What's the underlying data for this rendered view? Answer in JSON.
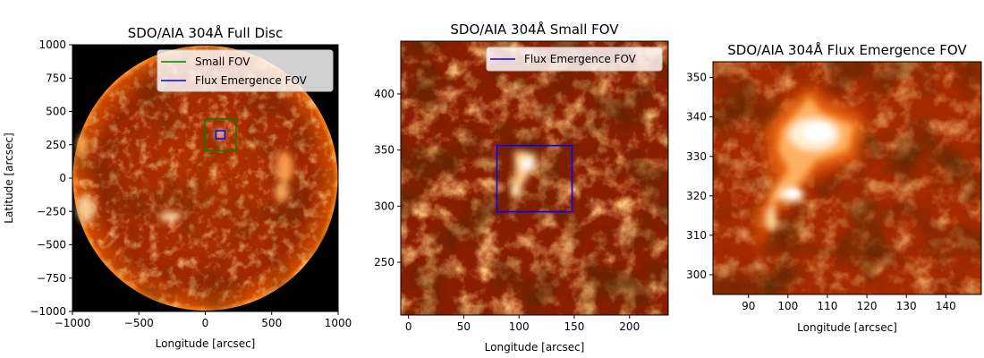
{
  "chart_data": [
    {
      "type": "heatmap",
      "title": "SDO/AIA 304Å Full Disc",
      "xlabel": "Longitude [arcsec]",
      "ylabel": "Latitude [arcsec]",
      "xlim": [
        -1000,
        1000
      ],
      "ylim": [
        -1000,
        1000
      ],
      "xticks": [
        -1000,
        -500,
        0,
        500,
        1000
      ],
      "xtick_labels": [
        "−1000",
        "−500",
        "0",
        "500",
        "1000"
      ],
      "yticks": [
        -1000,
        -750,
        -500,
        -250,
        0,
        250,
        500,
        750,
        1000
      ],
      "ytick_labels": [
        "−1000",
        "−750",
        "−500",
        "−250",
        "0",
        "250",
        "500",
        "750",
        "1000"
      ],
      "colormap": "sdoaia304",
      "legend_position": "upper-right",
      "boxes": [
        {
          "name": "Small FOV",
          "color": "#008000",
          "x0": -2,
          "x1": 232,
          "y0": 205,
          "y1": 445
        },
        {
          "name": "Flux Emergence FOV",
          "color": "#0000ff",
          "x0": 80,
          "x1": 148,
          "y0": 295,
          "y1": 355
        }
      ]
    },
    {
      "type": "heatmap",
      "title": "SDO/AIA 304Å Small FOV",
      "xlabel": "Longitude [arcsec]",
      "ylabel": "",
      "xlim": [
        -7,
        235
      ],
      "ylim": [
        203,
        447
      ],
      "xticks": [
        0,
        50,
        100,
        150,
        200
      ],
      "xtick_labels": [
        "0",
        "50",
        "100",
        "150",
        "200"
      ],
      "yticks": [
        250,
        300,
        350,
        400
      ],
      "ytick_labels": [
        "250",
        "300",
        "350",
        "400"
      ],
      "colormap": "sdoaia304",
      "legend_position": "upper-right",
      "boxes": [
        {
          "name": "Flux Emergence FOV",
          "color": "#0000ff",
          "x0": 80,
          "x1": 148,
          "y0": 295,
          "y1": 354
        }
      ]
    },
    {
      "type": "heatmap",
      "title": "SDO/AIA 304Å Flux Emergence FOV",
      "xlabel": "Longitude [arcsec]",
      "ylabel": "",
      "xlim": [
        81,
        149
      ],
      "ylim": [
        295,
        354
      ],
      "xticks": [
        90,
        100,
        110,
        120,
        130,
        140
      ],
      "xtick_labels": [
        "90",
        "100",
        "110",
        "120",
        "130",
        "140"
      ],
      "yticks": [
        300,
        310,
        320,
        330,
        340,
        350
      ],
      "ytick_labels": [
        "300",
        "310",
        "320",
        "330",
        "340",
        "350"
      ],
      "colormap": "sdoaia304",
      "boxes": []
    }
  ]
}
